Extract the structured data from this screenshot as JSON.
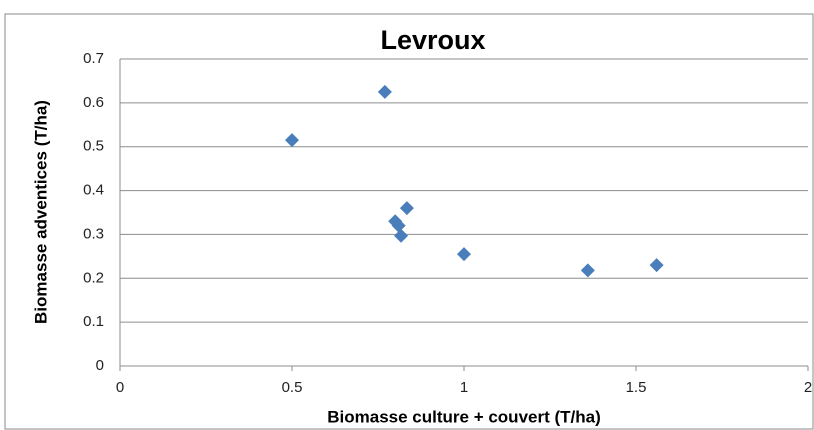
{
  "chart_data": {
    "type": "scatter",
    "title": "Levroux",
    "x_label": "Biomasse culture + couvert (T/ha)",
    "y_label": "Biomasse adventices (T/ha)",
    "series": [
      {
        "color": "#4a7ebb",
        "x": [
          0.5,
          0.77,
          0.834,
          0.8,
          0.81,
          0.817,
          1.0,
          1.36,
          1.56
        ],
        "values": [
          0.515,
          0.625,
          0.36,
          0.33,
          0.32,
          0.297,
          0.255,
          0.218,
          0.23
        ]
      }
    ],
    "xlim": [
      0,
      2
    ],
    "xticks": [
      0,
      0.5,
      1,
      1.5,
      2
    ],
    "ylim": [
      0,
      0.7
    ],
    "yticks": [
      0,
      0.1,
      0.2,
      0.3,
      0.4,
      0.5,
      0.6,
      0.7
    ],
    "grid": true
  }
}
